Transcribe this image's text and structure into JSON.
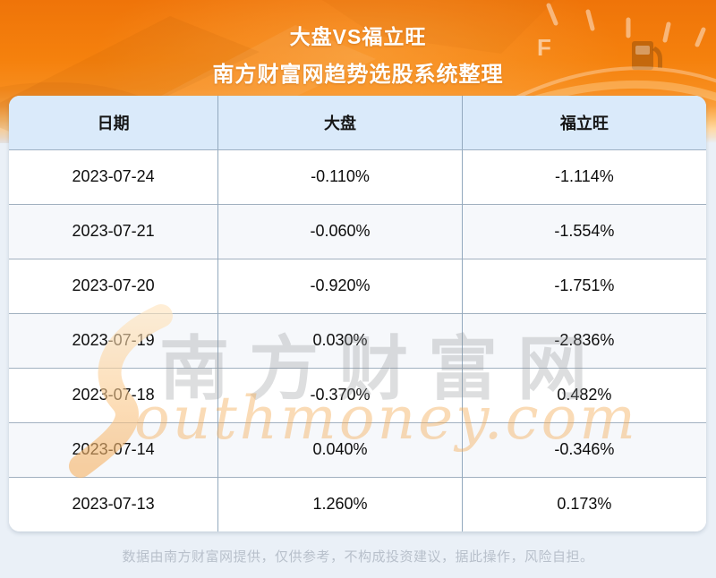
{
  "hero": {
    "title": "大盘VS福立旺",
    "subtitle": "南方财富网趋势选股系统整理"
  },
  "table": {
    "columns": [
      "日期",
      "大盘",
      "福立旺"
    ],
    "rows": [
      {
        "date": "2023-07-24",
        "market": "-0.110%",
        "stock": "-1.114%"
      },
      {
        "date": "2023-07-21",
        "market": "-0.060%",
        "stock": "-1.554%"
      },
      {
        "date": "2023-07-20",
        "market": "-0.920%",
        "stock": "-1.751%"
      },
      {
        "date": "2023-07-19",
        "market": "0.030%",
        "stock": "-2.836%"
      },
      {
        "date": "2023-07-18",
        "market": "-0.370%",
        "stock": "0.482%"
      },
      {
        "date": "2023-07-14",
        "market": "0.040%",
        "stock": "-0.346%"
      },
      {
        "date": "2023-07-13",
        "market": "1.260%",
        "stock": "0.173%"
      }
    ]
  },
  "watermark": {
    "cn": "南方财富网",
    "en": "outhmoney.com"
  },
  "footer": {
    "disclaimer": "数据由南方财富网提供，仅供参考，不构成投资建议，据此操作，风险自担。"
  },
  "hero_deco": {
    "gauge_full_label": "F"
  },
  "colors": {
    "accent_orange": "#f5810d",
    "peach_fade": "#ffd9a4",
    "page_bg": "#eaf0f7",
    "header_blue": "#daeafa",
    "row_alt": "#f6f8fb",
    "grid_line": "#9db0c2",
    "footer_text": "#b8c0cb",
    "watermark_orange": "#f3aa50",
    "watermark_gray": "#8e9296"
  },
  "chart_data": {
    "type": "table",
    "title": "大盘VS福立旺",
    "subtitle": "南方财富网趋势选股系统整理",
    "columns": [
      "日期",
      "大盘",
      "福立旺"
    ],
    "categories": [
      "2023-07-24",
      "2023-07-21",
      "2023-07-20",
      "2023-07-19",
      "2023-07-18",
      "2023-07-14",
      "2023-07-13"
    ],
    "series": [
      {
        "name": "大盘",
        "values": [
          -0.11,
          -0.06,
          -0.92,
          0.03,
          -0.37,
          0.04,
          1.26
        ]
      },
      {
        "name": "福立旺",
        "values": [
          -1.114,
          -1.554,
          -1.751,
          -2.836,
          0.482,
          -0.346,
          0.173
        ]
      }
    ],
    "unit": "%"
  }
}
